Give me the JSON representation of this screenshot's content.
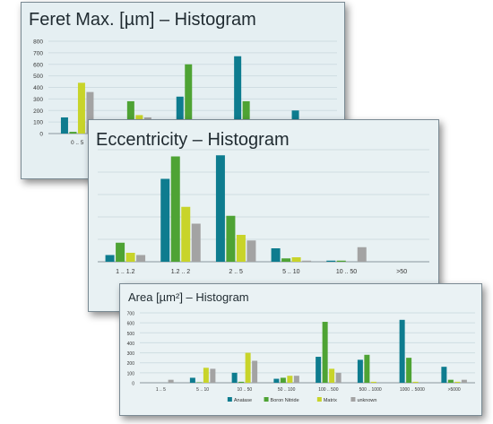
{
  "colors": {
    "anatase": "#0e7c8f",
    "boron_nitride": "#4ea334",
    "matrix": "#c8d42a",
    "unknown": "#a3a3a3",
    "grid": "#cfdde2",
    "axis_text": "#333333"
  },
  "chart_data": [
    {
      "type": "bar",
      "title": "Feret Max. [µm] – Histogram",
      "ylim": [
        0,
        800
      ],
      "yticks": [
        0,
        100,
        200,
        300,
        400,
        500,
        600,
        700,
        800
      ],
      "categories": [
        "0 .. 5",
        "",
        "",
        "",
        ""
      ],
      "series": [
        {
          "name": "Anatase",
          "values": [
            140,
            5,
            320,
            670,
            200
          ]
        },
        {
          "name": "Boron Nitride",
          "values": [
            15,
            280,
            600,
            280,
            0
          ]
        },
        {
          "name": "Matrix",
          "values": [
            440,
            160,
            0,
            0,
            0
          ]
        },
        {
          "name": "unknown",
          "values": [
            360,
            140,
            0,
            0,
            0
          ]
        }
      ],
      "grid": true
    },
    {
      "type": "bar",
      "title": "Eccentricity – Histogram",
      "ylim": [
        0,
        1
      ],
      "categories": [
        "1 .. 1.2",
        "1.2 .. 2",
        "2 .. 5",
        "5 .. 10",
        "10 .. 50",
        ">50"
      ],
      "series": [
        {
          "name": "Anatase",
          "values": [
            0.06,
            0.74,
            0.95,
            0.12,
            0.01,
            0
          ]
        },
        {
          "name": "Boron Nitride",
          "values": [
            0.17,
            0.94,
            0.41,
            0.03,
            0.01,
            0
          ]
        },
        {
          "name": "Matrix",
          "values": [
            0.08,
            0.49,
            0.24,
            0.04,
            0,
            0
          ]
        },
        {
          "name": "unknown",
          "values": [
            0.06,
            0.34,
            0.19,
            0.01,
            0.13,
            0
          ]
        }
      ],
      "grid": true
    },
    {
      "type": "bar",
      "title": "Area [µm²] – Histogram",
      "ylim": [
        0,
        700
      ],
      "yticks": [
        0,
        100,
        200,
        300,
        400,
        500,
        600,
        700
      ],
      "categories": [
        "1 .. 5",
        "5 .. 10",
        "10 .. 50",
        "50 .. 100",
        "100 .. 500",
        "500 .. 1000",
        "1000 .. 5000",
        ">5000"
      ],
      "series": [
        {
          "name": "Anatase",
          "values": [
            0,
            50,
            100,
            40,
            260,
            230,
            630,
            160
          ]
        },
        {
          "name": "Boron Nitride",
          "values": [
            0,
            5,
            10,
            50,
            610,
            280,
            250,
            30
          ]
        },
        {
          "name": "Matrix",
          "values": [
            0,
            150,
            300,
            70,
            140,
            10,
            10,
            10
          ]
        },
        {
          "name": "unknown",
          "values": [
            30,
            140,
            220,
            70,
            100,
            0,
            0,
            30
          ]
        }
      ],
      "legend": [
        "Anatase",
        "Boron Nitride",
        "Matrix",
        "unknown"
      ],
      "legend_position": "bottom",
      "grid": true
    }
  ]
}
